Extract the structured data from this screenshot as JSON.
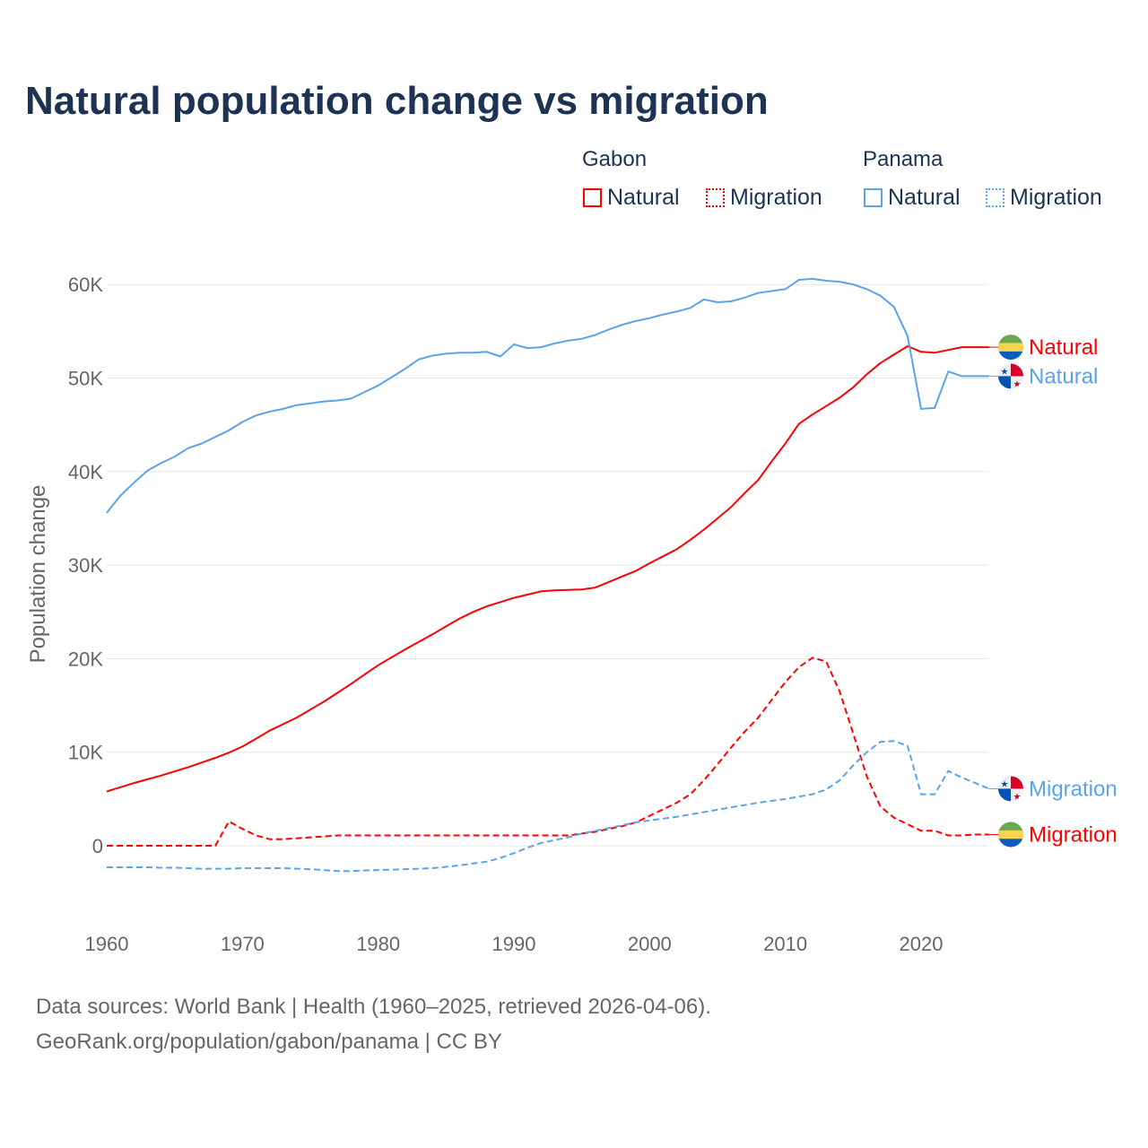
{
  "title": "Natural population change vs migration",
  "legend": {
    "groups": [
      {
        "name": "Gabon",
        "items": [
          {
            "label": "Natural",
            "style": "solid",
            "color": "#ff0000"
          },
          {
            "label": "Migration",
            "style": "dotted",
            "color": "#ff0000"
          }
        ]
      },
      {
        "name": "Panama",
        "items": [
          {
            "label": "Natural",
            "style": "solid",
            "color": "#5ba3ea"
          },
          {
            "label": "Migration",
            "style": "dotted",
            "color": "#5ba3ea"
          }
        ]
      }
    ]
  },
  "footer": {
    "sources": "Data sources: World Bank | Health (1960–2025, retrieved 2026-04-06).",
    "credit": "GeoRank.org/population/gabon/panama | CC BY"
  },
  "chart_data": {
    "type": "line",
    "title": "Natural population change vs migration",
    "xlabel": "",
    "ylabel": "Population change",
    "xlim": [
      1960,
      2025
    ],
    "ylim": [
      -7000,
      65000
    ],
    "x_ticks": [
      1960,
      1970,
      1980,
      1990,
      2000,
      2010,
      2020
    ],
    "x_tick_labels": [
      "1960",
      "1970",
      "1980",
      "1990",
      "2000",
      "2010",
      "2020"
    ],
    "y_ticks": [
      0,
      10000,
      20000,
      30000,
      40000,
      50000,
      60000
    ],
    "y_tick_labels": [
      "0",
      "10K",
      "20K",
      "30K",
      "40K",
      "50K",
      "60K"
    ],
    "grid": true,
    "x": [
      1960,
      1961,
      1962,
      1963,
      1964,
      1965,
      1966,
      1967,
      1968,
      1969,
      1970,
      1971,
      1972,
      1973,
      1974,
      1975,
      1976,
      1977,
      1978,
      1979,
      1980,
      1981,
      1982,
      1983,
      1984,
      1985,
      1986,
      1987,
      1988,
      1989,
      1990,
      1991,
      1992,
      1993,
      1994,
      1995,
      1996,
      1997,
      1998,
      1999,
      2000,
      2001,
      2002,
      2003,
      2004,
      2005,
      2006,
      2007,
      2008,
      2009,
      2010,
      2011,
      2012,
      2013,
      2014,
      2015,
      2016,
      2017,
      2018,
      2019,
      2020,
      2021,
      2022,
      2023,
      2024,
      2025
    ],
    "series": [
      {
        "name": "Gabon Natural",
        "country": "Gabon",
        "end_label": "Natural",
        "color": "#ff0000",
        "dash": false,
        "values": [
          5800,
          6250,
          6700,
          7100,
          7500,
          7950,
          8400,
          8900,
          9400,
          9950,
          10600,
          11450,
          12300,
          13000,
          13700,
          14550,
          15400,
          16350,
          17300,
          18300,
          19300,
          20150,
          21000,
          21800,
          22600,
          23450,
          24300,
          25000,
          25600,
          26050,
          26500,
          26850,
          27200,
          27300,
          27350,
          27400,
          27600,
          28200,
          28800,
          29400,
          30200,
          30950,
          31700,
          32700,
          33800,
          35000,
          36200,
          37700,
          39100,
          41100,
          43000,
          45100,
          46100,
          47000,
          47900,
          49000,
          50400,
          51600,
          52500,
          53400,
          52800,
          52700,
          53000,
          53300,
          53300,
          53300
        ]
      },
      {
        "name": "Gabon Migration",
        "country": "Gabon",
        "end_label": "Migration",
        "color": "#ff0000",
        "dash": true,
        "values": [
          0,
          0,
          0,
          0,
          0,
          0,
          0,
          0,
          0,
          2600,
          1800,
          1100,
          700,
          700,
          800,
          900,
          1000,
          1100,
          1100,
          1100,
          1100,
          1100,
          1100,
          1100,
          1100,
          1100,
          1100,
          1100,
          1100,
          1100,
          1100,
          1100,
          1100,
          1100,
          1100,
          1300,
          1500,
          1800,
          2100,
          2500,
          3200,
          3900,
          4600,
          5500,
          7000,
          8700,
          10500,
          12200,
          13700,
          15600,
          17500,
          19100,
          20100,
          19700,
          16500,
          12000,
          7400,
          4200,
          3000,
          2300,
          1600,
          1600,
          1100,
          1100,
          1200,
          1200
        ]
      },
      {
        "name": "Panama Natural",
        "country": "Panama",
        "end_label": "Natural",
        "color": "#5ba3ea",
        "dash": false,
        "values": [
          35600,
          37400,
          38800,
          40100,
          40900,
          41600,
          42500,
          43000,
          43700,
          44400,
          45300,
          46000,
          46400,
          46700,
          47100,
          47300,
          47500,
          47600,
          47800,
          48500,
          49200,
          50100,
          51000,
          52000,
          52400,
          52600,
          52700,
          52700,
          52800,
          52300,
          53600,
          53200,
          53300,
          53700,
          54000,
          54200,
          54600,
          55200,
          55700,
          56100,
          56400,
          56800,
          57100,
          57500,
          58400,
          58100,
          58200,
          58600,
          59100,
          59300,
          59500,
          60500,
          60600,
          60400,
          60300,
          60000,
          59500,
          58800,
          57600,
          54500,
          46700,
          46800,
          50700,
          50200,
          50200,
          50200
        ]
      },
      {
        "name": "Panama Migration",
        "country": "Panama",
        "end_label": "Migration",
        "color": "#5ba3ea",
        "dash": true,
        "values": [
          -2300,
          -2300,
          -2300,
          -2300,
          -2350,
          -2350,
          -2400,
          -2450,
          -2450,
          -2450,
          -2400,
          -2400,
          -2400,
          -2400,
          -2450,
          -2500,
          -2600,
          -2700,
          -2700,
          -2650,
          -2600,
          -2550,
          -2500,
          -2450,
          -2400,
          -2250,
          -2100,
          -1900,
          -1700,
          -1300,
          -800,
          -200,
          300,
          600,
          900,
          1300,
          1600,
          1900,
          2200,
          2500,
          2700,
          2900,
          3100,
          3350,
          3600,
          3850,
          4100,
          4350,
          4600,
          4800,
          5000,
          5250,
          5500,
          6000,
          7000,
          8600,
          10000,
          11100,
          11200,
          10700,
          5500,
          5500,
          8000,
          7300,
          6700,
          6100
        ]
      }
    ],
    "end_labels_order": [
      "Gabon Natural",
      "Panama Natural",
      "Panama Migration",
      "Gabon Migration"
    ]
  }
}
